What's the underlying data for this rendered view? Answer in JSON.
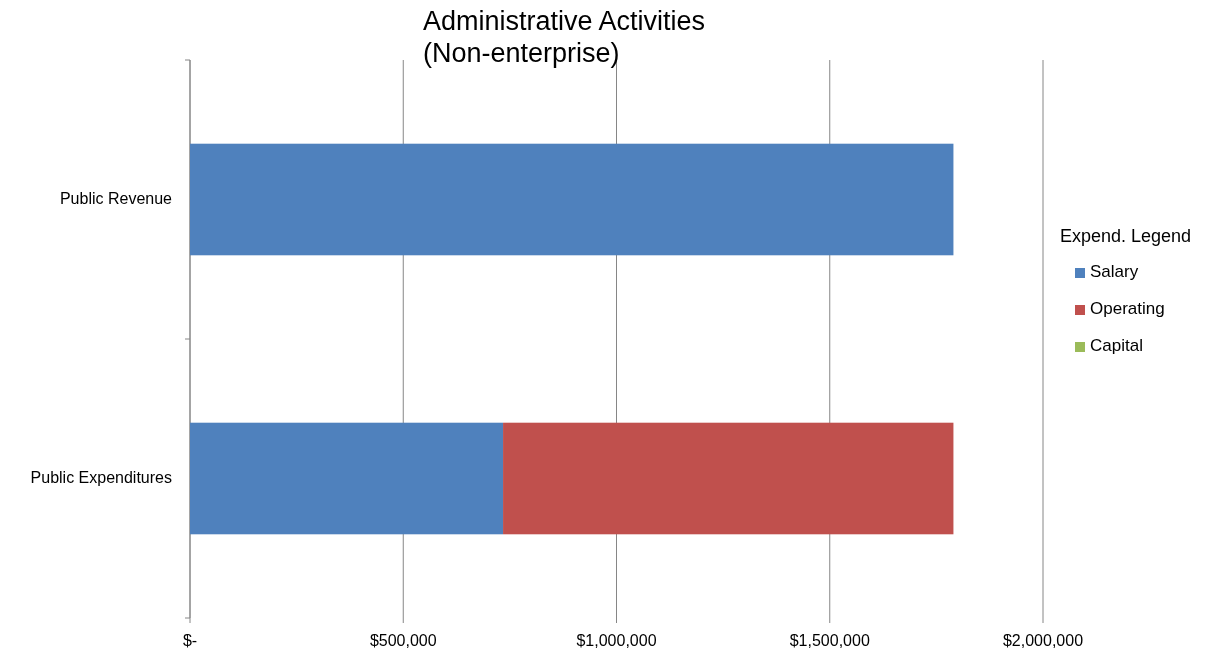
{
  "chart_data": {
    "type": "bar",
    "orientation": "horizontal",
    "stacked": true,
    "title": "Administrative Activities\n(Non-enterprise)",
    "legend_title": "Expend. Legend",
    "categories": [
      "Public Revenue",
      "Public Expenditures"
    ],
    "series": [
      {
        "name": "Salary",
        "color": "#4f81bd",
        "values": [
          1790000,
          734000
        ]
      },
      {
        "name": "Operating",
        "color": "#c0504d",
        "values": [
          null,
          1056000
        ]
      },
      {
        "name": "Capital",
        "color": "#9bbb59",
        "values": [
          null,
          null
        ]
      }
    ],
    "xlim": [
      0,
      2000000
    ],
    "xticks": [
      {
        "value": 0,
        "label": "$-"
      },
      {
        "value": 500000,
        "label": "$500,000"
      },
      {
        "value": 1000000,
        "label": "$1,000,000"
      },
      {
        "value": 1500000,
        "label": "$1,500,000"
      },
      {
        "value": 2000000,
        "label": "$2,000,000"
      }
    ],
    "grid": "x",
    "legend": "right"
  }
}
